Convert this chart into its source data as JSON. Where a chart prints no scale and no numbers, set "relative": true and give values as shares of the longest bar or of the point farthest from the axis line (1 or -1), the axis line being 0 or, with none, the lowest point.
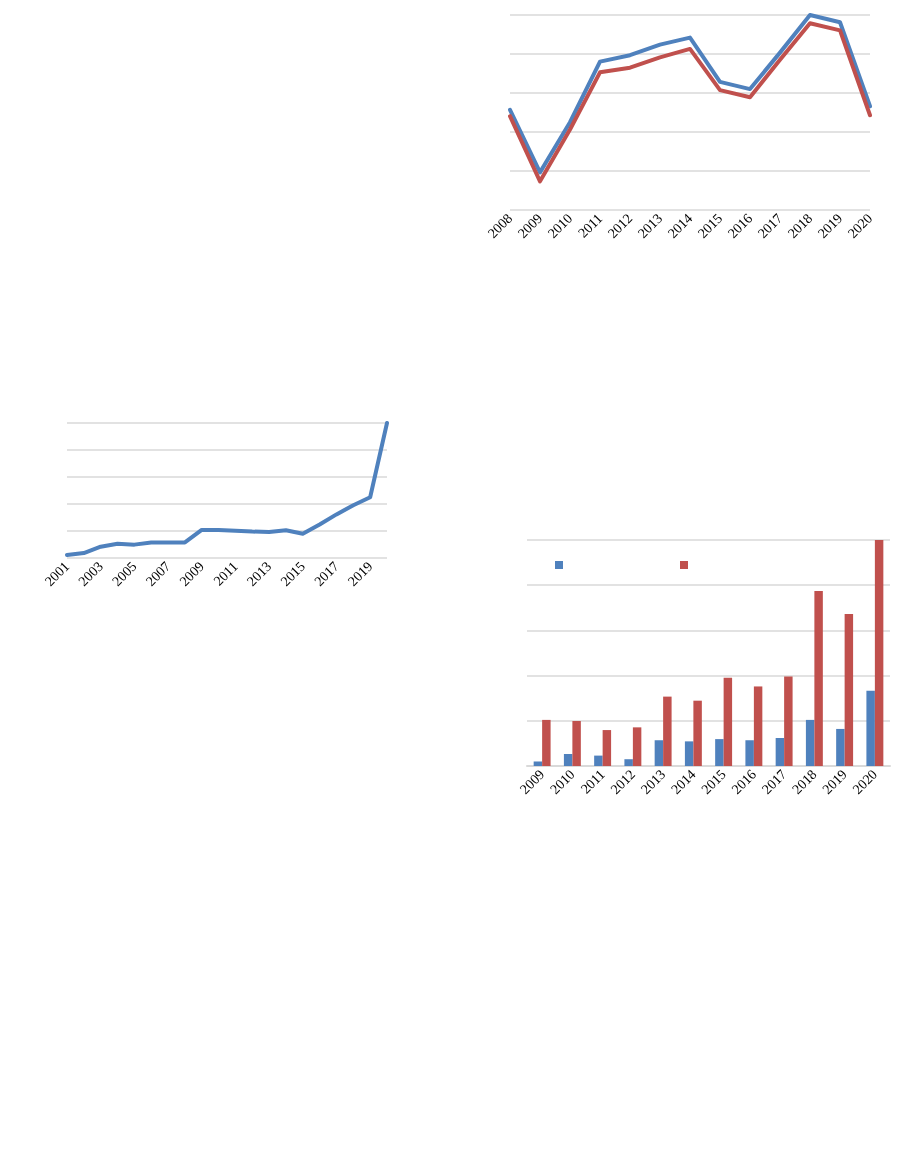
{
  "chart_data": [
    {
      "type": "line",
      "relative": true,
      "grid": "y",
      "categories": [
        "2008",
        "2009",
        "2010",
        "2011",
        "2012",
        "2013",
        "2014",
        "2015",
        "2016",
        "2017",
        "2018",
        "2019",
        "2020"
      ],
      "series": [
        {
          "color": "#4f81bd",
          "values": [
            0.514,
            0.193,
            0.45,
            0.761,
            0.794,
            0.848,
            0.884,
            0.657,
            0.62,
            0.807,
            1,
            0.963,
            0.532
          ]
        },
        {
          "color": "#c0504d",
          "values": [
            0.481,
            0.147,
            0.413,
            0.706,
            0.73,
            0.783,
            0.826,
            0.615,
            0.578,
            0.771,
            0.958,
            0.921,
            0.486
          ]
        }
      ]
    },
    {
      "type": "line",
      "relative": true,
      "grid": "y",
      "categories": [
        "2001",
        null,
        "2003",
        null,
        "2005",
        null,
        "2007",
        null,
        "2009",
        null,
        "2011",
        null,
        "2013",
        null,
        "2015",
        null,
        "2017",
        null,
        "2019",
        null
      ],
      "series": [
        {
          "color": "#4f81bd",
          "values": [
            0.022,
            0.037,
            0.084,
            0.106,
            0.099,
            0.115,
            0.115,
            0.115,
            0.208,
            0.208,
            0.202,
            0.196,
            0.193,
            0.205,
            0.18,
            0.248,
            0.323,
            0.391,
            0.45,
            1
          ]
        }
      ]
    },
    {
      "type": "bar",
      "relative": true,
      "grid": "y",
      "categories": [
        "2009",
        "2010",
        "2011",
        "2012",
        "2013",
        "2014",
        "2015",
        "2016",
        "2017",
        "2018",
        "2019",
        "2020"
      ],
      "series": [
        {
          "color": "#4f81bd",
          "values": [
            0.02,
            0.053,
            0.046,
            0.03,
            0.114,
            0.109,
            0.119,
            0.114,
            0.124,
            0.204,
            0.164,
            0.333
          ]
        },
        {
          "color": "#c0504d",
          "values": [
            0.204,
            0.199,
            0.159,
            0.171,
            0.307,
            0.289,
            0.391,
            0.352,
            0.396,
            0.774,
            0.673,
            1
          ]
        }
      ]
    }
  ]
}
